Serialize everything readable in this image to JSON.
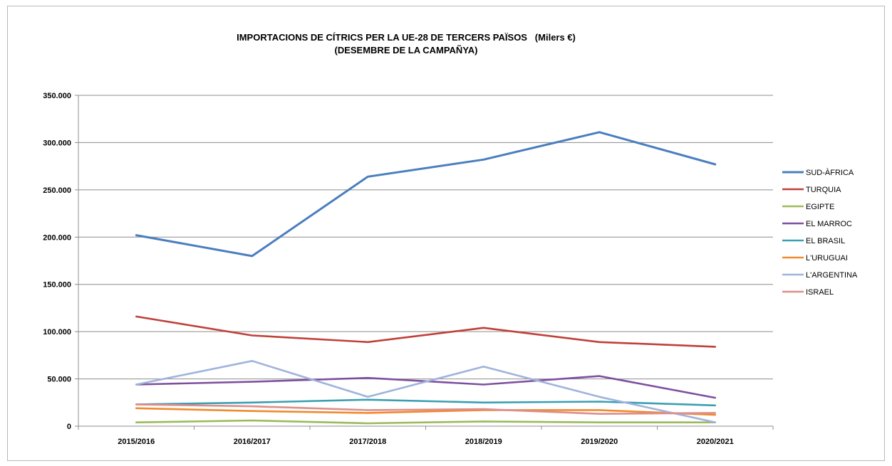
{
  "chart_data": {
    "type": "line",
    "title": "IMPORTACIONS DE CÍTRICS PER LA UE-28 DE TERCERS PAÏSOS   (Milers €)",
    "subtitle": "(DESEMBRE DE LA CAMPAÑYA)",
    "xlabel": "",
    "ylabel": "",
    "categories": [
      "2015/2016",
      "2016/2017",
      "2017/2018",
      "2018/2019",
      "2019/2020",
      "2020/2021"
    ],
    "ylim": [
      0,
      350000
    ],
    "yticks": [
      "0",
      "50.000",
      "100.000",
      "150.000",
      "200.000",
      "250.000",
      "300.000",
      "350.000"
    ],
    "grid": true,
    "legend_position": "right",
    "series": [
      {
        "name": "SUD-ÀFRICA",
        "color": "#4a7ebf",
        "values": [
          202000,
          180000,
          264000,
          282000,
          311000,
          277000
        ]
      },
      {
        "name": "TURQUIA",
        "color": "#c0403a",
        "values": [
          116000,
          96000,
          89000,
          104000,
          89000,
          84000
        ]
      },
      {
        "name": "EGIPTE",
        "color": "#9bbb59",
        "values": [
          4000,
          6000,
          3000,
          5000,
          4000,
          4000
        ]
      },
      {
        "name": "EL MARROC",
        "color": "#7f4f9f",
        "values": [
          44000,
          47000,
          51000,
          44000,
          53000,
          30000
        ]
      },
      {
        "name": "EL BRASIL",
        "color": "#3a9fb2",
        "values": [
          23000,
          25000,
          28000,
          25000,
          26000,
          22000
        ]
      },
      {
        "name": "L'URUGUAI",
        "color": "#f08a2c",
        "values": [
          19000,
          16000,
          14000,
          17000,
          17000,
          12000
        ]
      },
      {
        "name": "L'ARGENTINA",
        "color": "#9fb3dc",
        "values": [
          44000,
          69000,
          31000,
          63000,
          31000,
          4000
        ]
      },
      {
        "name": "ISRAEL",
        "color": "#dc8e8c",
        "values": [
          23000,
          21000,
          17000,
          18000,
          13000,
          14000
        ]
      }
    ]
  }
}
